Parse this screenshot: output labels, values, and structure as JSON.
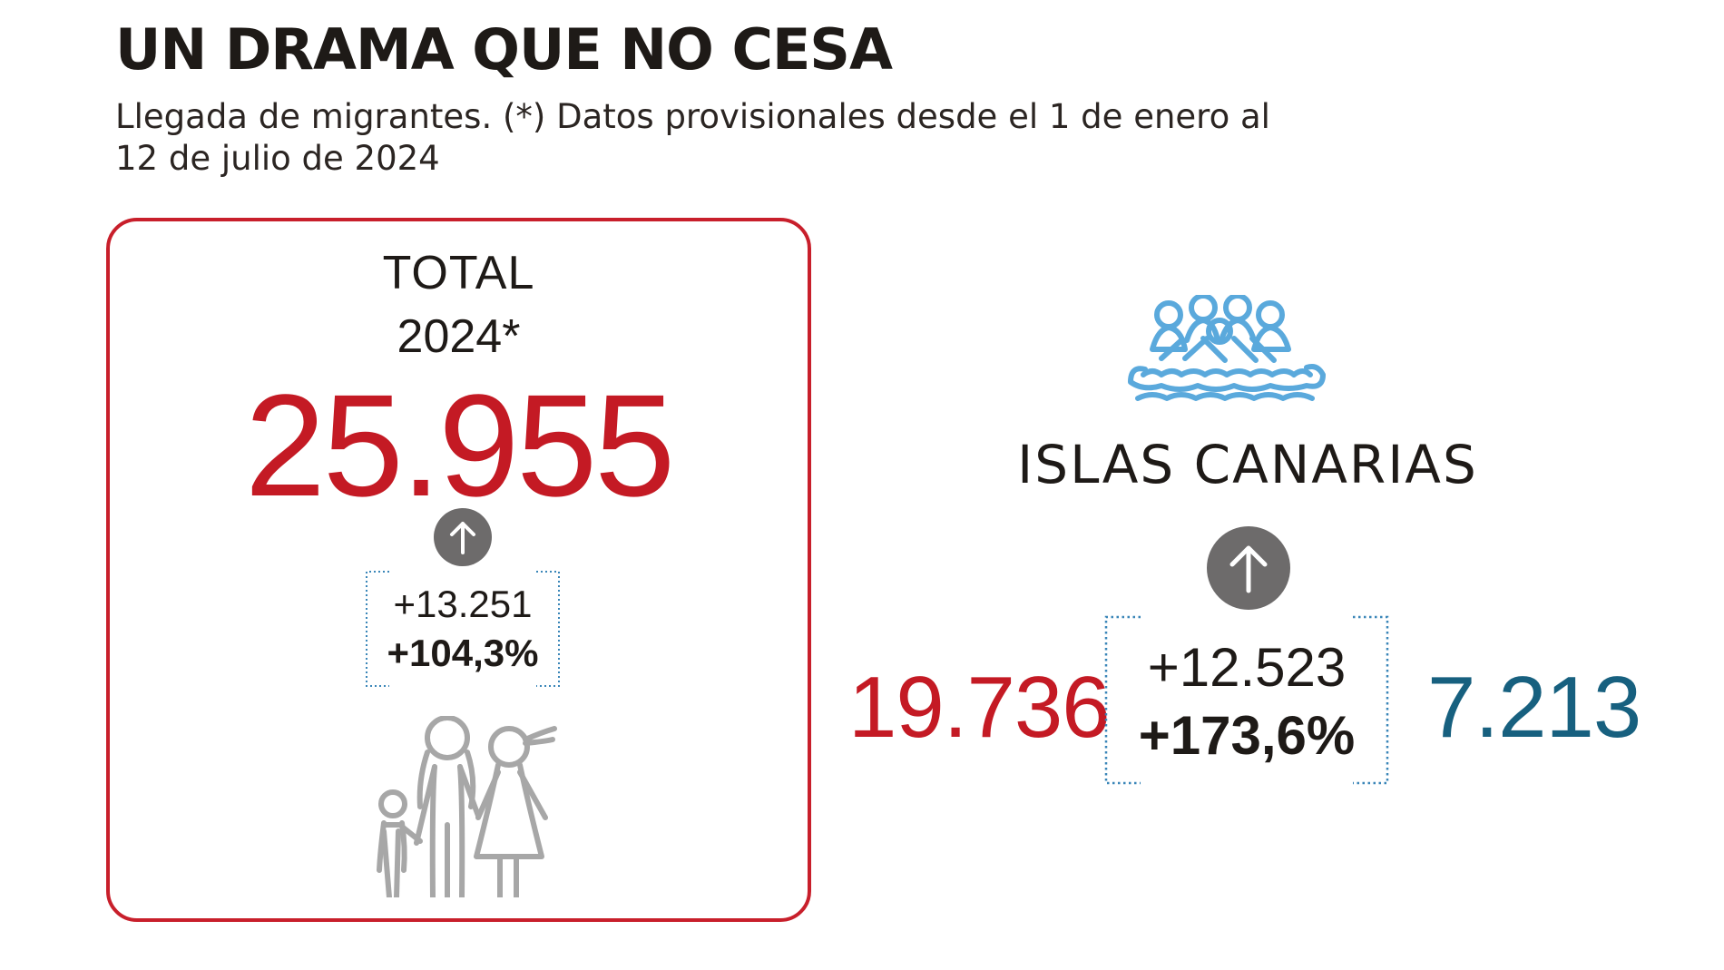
{
  "header": {
    "title": "UN DRAMA QUE NO CESA",
    "subtitle": "Llegada de migrantes. (*) Datos provisionales desde el 1 de enero al 12 de julio de 2024"
  },
  "total_card": {
    "label": "TOTAL",
    "year": "2024*",
    "value": "25.955",
    "increase_abs": "+13.251",
    "increase_pct": "+104,3%",
    "icon": "family-icon",
    "arrow_icon": "arrow-up-icon"
  },
  "canarias": {
    "name": "ISLAS CANARIAS",
    "icon": "migrant-boat-icon",
    "arrow_icon": "arrow-up-icon",
    "current_value": "19.736",
    "previous_value": "7.213",
    "increase_abs": "+12.523",
    "increase_pct": "+173,6%"
  },
  "colors": {
    "accent_red": "#c41a24",
    "border_red": "#c81f2b",
    "teal_blue": "#17607f",
    "icon_blue": "#5aa9dc",
    "arrow_grey": "#6d6b6b",
    "bracket_dotted": "#3a86b8"
  }
}
